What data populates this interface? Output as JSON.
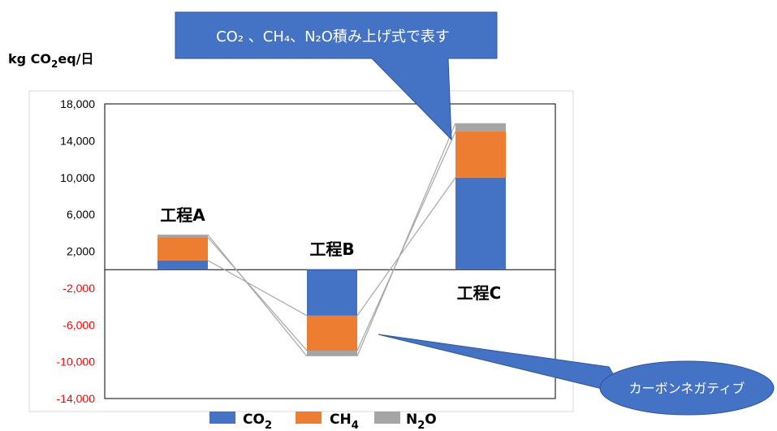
{
  "chart_data": {
    "type": "bar",
    "stacked": true,
    "ylabel": "kg CO2eq/日",
    "ylabel_parts": [
      "kg CO",
      "2",
      "eq/日"
    ],
    "categories": [
      "工程A",
      "工程B",
      "工程C"
    ],
    "series": [
      {
        "name": "CO2",
        "name_parts": [
          "CO",
          "2"
        ],
        "color": "#4472C4",
        "values": [
          1000,
          -5000,
          10000
        ]
      },
      {
        "name": "CH4",
        "name_parts": [
          "CH",
          "4"
        ],
        "color": "#ED7D31",
        "values": [
          2500,
          -3800,
          5000
        ]
      },
      {
        "name": "N2O",
        "name_parts": [
          "N",
          "2",
          "O"
        ],
        "color": "#A5A5A5",
        "values": [
          300,
          -600,
          900
        ]
      }
    ],
    "ylim": [
      -14000,
      18000
    ],
    "yticks": [
      {
        "value": 18000,
        "label": "18,000"
      },
      {
        "value": 14000,
        "label": "14,000"
      },
      {
        "value": 10000,
        "label": "10,000"
      },
      {
        "value": 6000,
        "label": "6,000"
      },
      {
        "value": 2000,
        "label": "2,000"
      },
      {
        "value": -2000,
        "label": "-2,000"
      },
      {
        "value": -6000,
        "label": "-6,000"
      },
      {
        "value": -10000,
        "label": "-10,000"
      },
      {
        "value": -14000,
        "label": "-14,000"
      }
    ],
    "negative_tick_color": "#FF0000",
    "positive_tick_color": "#000000",
    "grid": false,
    "legend_position": "bottom",
    "annotations": [
      {
        "id": "stack-note",
        "text": "CO₂ 、CH₄、N₂O積み上げ式で表す",
        "shape": "rectangular-callout",
        "color": "#4472C4"
      },
      {
        "id": "negative-note",
        "text": "カーボンネガティブ",
        "shape": "oval-callout",
        "color": "#4472C4"
      }
    ]
  }
}
